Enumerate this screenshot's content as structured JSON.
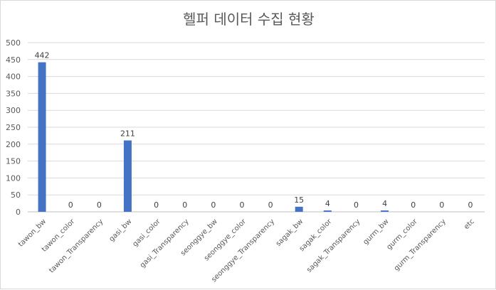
{
  "chart_data": {
    "type": "bar",
    "title": "헬퍼 데이터 수집 현황",
    "xlabel": "",
    "ylabel": "",
    "ylim": [
      0,
      500
    ],
    "yticks": [
      0,
      50,
      100,
      150,
      200,
      250,
      300,
      350,
      400,
      450,
      500
    ],
    "grid": true,
    "legend": "none",
    "bar_color": "#4472c4",
    "categories": [
      "tawon_bw",
      "tawon_color",
      "tawon_Transparency",
      "gasi_bw",
      "gasi_color",
      "gasi_Transparency",
      "seonggye_bw",
      "seonggye_color",
      "seonggye_Transparency",
      "sagak_bw",
      "sagak_color",
      "sagak_Transparency",
      "gurm_bw",
      "gurm_color",
      "gurm_Transparency",
      "etc"
    ],
    "values": [
      442,
      0,
      0,
      211,
      0,
      0,
      0,
      0,
      0,
      15,
      4,
      0,
      4,
      0,
      0,
      0
    ]
  }
}
